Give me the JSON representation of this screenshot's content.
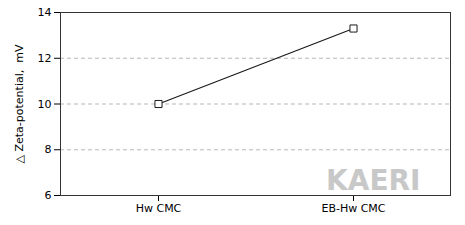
{
  "chart_data": {
    "type": "line",
    "categories": [
      "Hw CMC",
      "EB-Hw CMC"
    ],
    "values": [
      10.0,
      13.3
    ],
    "ylabel": "△ Zeta-potential,  mV",
    "ylim": [
      6,
      14
    ],
    "yticks": [
      6,
      8,
      10,
      12,
      14
    ],
    "grid": true,
    "color": "#1a1a1a",
    "marker": "square",
    "annotations": [
      "KAERI"
    ]
  }
}
